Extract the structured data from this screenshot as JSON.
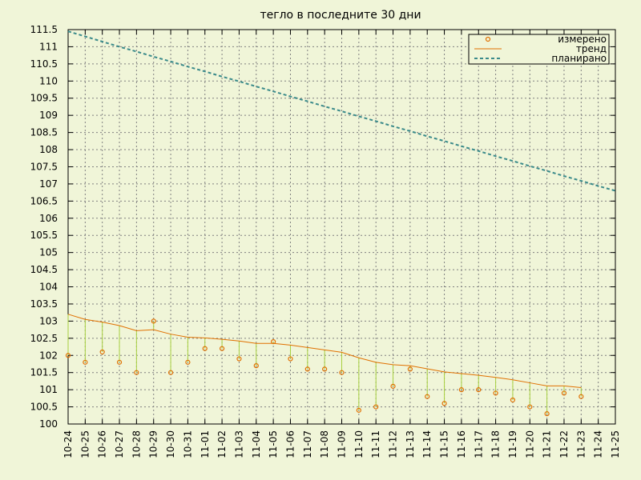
{
  "chart_data": {
    "type": "line",
    "title": "тегло в последните 30 дни",
    "xlabel": "",
    "ylabel": "",
    "categories": [
      "10-24",
      "10-25",
      "10-26",
      "10-27",
      "10-28",
      "10-29",
      "10-30",
      "10-31",
      "11-01",
      "11-02",
      "11-03",
      "11-04",
      "11-05",
      "11-06",
      "11-07",
      "11-08",
      "11-09",
      "11-10",
      "11-11",
      "11-12",
      "11-13",
      "11-14",
      "11-15",
      "11-16",
      "11-17",
      "11-18",
      "11-19",
      "11-20",
      "11-21",
      "11-22",
      "11-23",
      "11-24",
      "11-25"
    ],
    "ylim": [
      100,
      111.5
    ],
    "yticks": [
      "100",
      "100.5",
      "101",
      "101.5",
      "102",
      "102.5",
      "103",
      "103.5",
      "104",
      "104.5",
      "105",
      "105.5",
      "106",
      "106.5",
      "107",
      "107.5",
      "108",
      "108.5",
      "109",
      "109.5",
      "110",
      "110.5",
      "111",
      "111.5"
    ],
    "grid": true,
    "legend_position": "top-right",
    "series": [
      {
        "name": "измерено",
        "style": "points-with-impulses",
        "color": "#e07000",
        "impulse_color": "#a8d040",
        "values": [
          102.0,
          101.8,
          102.1,
          101.8,
          101.5,
          103.0,
          101.5,
          101.8,
          102.2,
          102.2,
          101.9,
          101.7,
          102.4,
          101.9,
          101.6,
          101.6,
          101.5,
          100.4,
          100.5,
          101.1,
          101.6,
          100.8,
          100.6,
          101.0,
          101.0,
          100.9,
          100.7,
          100.5,
          100.3,
          100.9,
          100.8,
          null,
          null
        ]
      },
      {
        "name": "тренд",
        "style": "line",
        "color": "#e07000",
        "values": [
          103.2,
          103.05,
          102.97,
          102.87,
          102.72,
          102.75,
          102.62,
          102.53,
          102.51,
          102.47,
          102.42,
          102.35,
          102.35,
          102.3,
          102.23,
          102.16,
          102.09,
          101.93,
          101.8,
          101.73,
          101.7,
          101.61,
          101.52,
          101.47,
          101.42,
          101.36,
          101.29,
          101.2,
          101.11,
          101.11,
          101.06,
          null,
          null
        ]
      },
      {
        "name": "планирано",
        "style": "dashed-line",
        "color": "#3a8a8a",
        "values": [
          111.45,
          111.3,
          111.15,
          111.0,
          110.86,
          110.71,
          110.57,
          110.42,
          110.28,
          110.13,
          109.99,
          109.84,
          109.7,
          109.55,
          109.41,
          109.26,
          109.12,
          108.97,
          108.83,
          108.68,
          108.54,
          108.39,
          108.25,
          108.1,
          107.96,
          107.81,
          107.67,
          107.52,
          107.38,
          107.23,
          107.09,
          106.94,
          106.8
        ]
      }
    ]
  }
}
